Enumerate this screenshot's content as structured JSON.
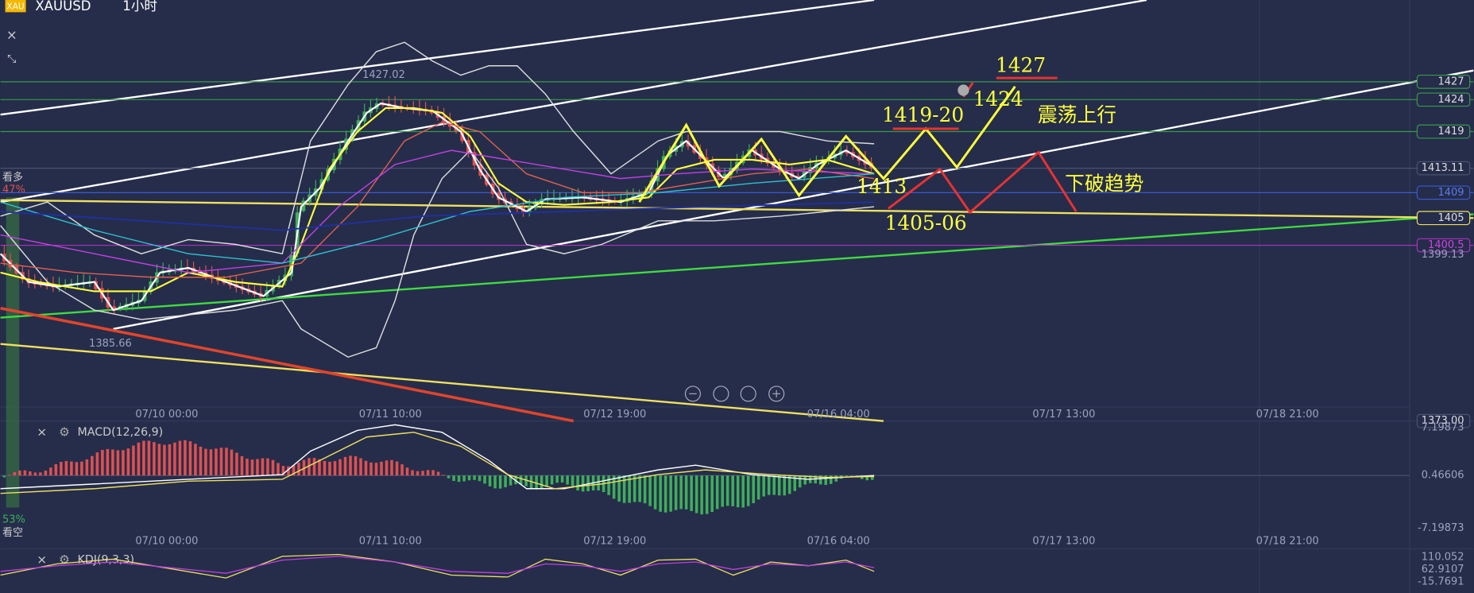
{
  "header": {
    "logo": "XAU",
    "symbol": "XAUUSD",
    "interval": "1小时"
  },
  "sentiment": {
    "bull_label": "看多",
    "bull_pct": "47%",
    "bear_pct": "53%",
    "bear_label": "看空"
  },
  "price_axis": [
    "1427",
    "1424",
    "1419",
    "1413.11",
    "1409",
    "1405",
    "1400.5",
    "1399.13",
    "1373.00"
  ],
  "chart_marks": {
    "high": "1427.02",
    "low": "1385.66"
  },
  "annotations": [
    "1427",
    "1424",
    "1419-20",
    "1413",
    "1405-06",
    "震荡上行",
    "下破趋势"
  ],
  "time_axis": [
    "07/10 00:00",
    "07/11 10:00",
    "07/12 19:00",
    "07/16 04:00",
    "07/17 13:00",
    "07/18 21:00"
  ],
  "macd": {
    "label": "MACD(12,26,9)",
    "axis": [
      "7.19873",
      "0.46606",
      "-7.19873"
    ]
  },
  "kdj": {
    "label": "KDJ(9,3,3)",
    "axis": [
      "110.052",
      "62.9107",
      "-15.7691"
    ]
  }
}
